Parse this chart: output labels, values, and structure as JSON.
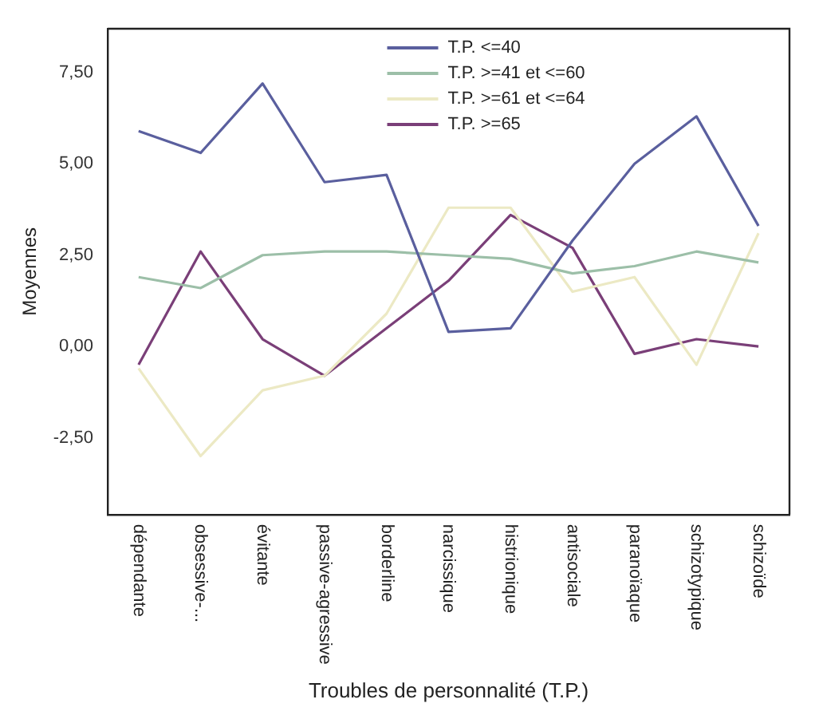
{
  "chart_data": {
    "type": "line",
    "xlabel": "Troubles de personnalité (T.P.)",
    "ylabel": "Moyennes",
    "categories": [
      "dépendante",
      "obsessive-...",
      "évitante",
      "passive-agressive",
      "borderline",
      "narcissique",
      "histrionique",
      "antisociale",
      "paranoïaque",
      "schizotypique",
      "schizoïde"
    ],
    "series": [
      {
        "name": "T.P. <=40",
        "color": "#5a5f9e",
        "values": [
          5.9,
          5.3,
          7.2,
          4.5,
          4.7,
          0.4,
          0.5,
          2.9,
          5.0,
          6.3,
          3.3
        ]
      },
      {
        "name": "T.P. >=41 et <=60",
        "color": "#9cbfa8",
        "values": [
          1.9,
          1.6,
          2.5,
          2.6,
          2.6,
          2.5,
          2.4,
          2.0,
          2.2,
          2.6,
          2.3
        ]
      },
      {
        "name": "T.P. >=61 et <=64",
        "color": "#ece9c4",
        "values": [
          -0.6,
          -3.0,
          -1.2,
          -0.8,
          0.9,
          3.8,
          3.8,
          1.5,
          1.9,
          -0.5,
          3.1
        ]
      },
      {
        "name": "T.P. >=65",
        "color": "#7a3f78",
        "values": [
          -0.5,
          2.6,
          0.2,
          -0.8,
          0.5,
          1.8,
          3.6,
          2.7,
          -0.2,
          0.2,
          0.0
        ]
      }
    ],
    "ylim": [
      -4.6,
      8.7
    ],
    "yticks": [
      {
        "value": -2.5,
        "label": "-2,50"
      },
      {
        "value": 0,
        "label": "0,00"
      },
      {
        "value": 2.5,
        "label": "2,50"
      },
      {
        "value": 5,
        "label": "5,00"
      },
      {
        "value": 7.5,
        "label": "7,50"
      }
    ],
    "grid": false,
    "legend": "top",
    "marker": "none",
    "line_style": "solid"
  }
}
